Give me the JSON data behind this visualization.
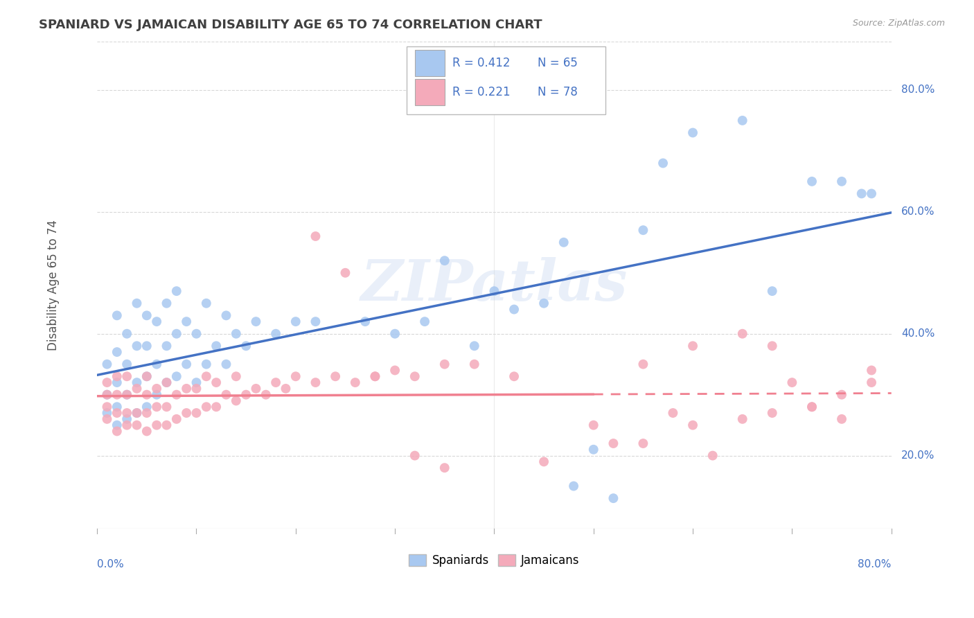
{
  "title": "SPANIARD VS JAMAICAN DISABILITY AGE 65 TO 74 CORRELATION CHART",
  "source_text": "Source: ZipAtlas.com",
  "ylabel": "Disability Age 65 to 74",
  "xlim": [
    0.0,
    0.8
  ],
  "ylim": [
    0.08,
    0.88
  ],
  "watermark": "ZIPatlas",
  "legend_r_spaniard": "0.412",
  "legend_n_spaniard": "65",
  "legend_r_jamaican": "0.221",
  "legend_n_jamaican": "78",
  "spaniard_color": "#A8C8F0",
  "jamaican_color": "#F4AABA",
  "spaniard_line_color": "#4472C4",
  "jamaican_line_color": "#F08090",
  "grid_color": "#D8D8D8",
  "title_color": "#404040",
  "legend_text_color": "#4472C4",
  "right_tick_color": "#4472C4",
  "spaniard_x": [
    0.01,
    0.01,
    0.01,
    0.02,
    0.02,
    0.02,
    0.02,
    0.02,
    0.03,
    0.03,
    0.03,
    0.03,
    0.04,
    0.04,
    0.04,
    0.04,
    0.05,
    0.05,
    0.05,
    0.05,
    0.06,
    0.06,
    0.06,
    0.07,
    0.07,
    0.07,
    0.08,
    0.08,
    0.08,
    0.09,
    0.09,
    0.1,
    0.1,
    0.11,
    0.11,
    0.12,
    0.13,
    0.13,
    0.14,
    0.15,
    0.16,
    0.18,
    0.2,
    0.22,
    0.27,
    0.3,
    0.33,
    0.4,
    0.45,
    0.47,
    0.5,
    0.55,
    0.57,
    0.6,
    0.65,
    0.68,
    0.72,
    0.75,
    0.77,
    0.78,
    0.35,
    0.38,
    0.42,
    0.48,
    0.52
  ],
  "spaniard_y": [
    0.27,
    0.3,
    0.35,
    0.25,
    0.28,
    0.32,
    0.37,
    0.43,
    0.26,
    0.3,
    0.35,
    0.4,
    0.27,
    0.32,
    0.38,
    0.45,
    0.28,
    0.33,
    0.38,
    0.43,
    0.3,
    0.35,
    0.42,
    0.32,
    0.38,
    0.45,
    0.33,
    0.4,
    0.47,
    0.35,
    0.42,
    0.32,
    0.4,
    0.35,
    0.45,
    0.38,
    0.35,
    0.43,
    0.4,
    0.38,
    0.42,
    0.4,
    0.42,
    0.42,
    0.42,
    0.4,
    0.42,
    0.47,
    0.45,
    0.55,
    0.21,
    0.57,
    0.68,
    0.73,
    0.75,
    0.47,
    0.65,
    0.65,
    0.63,
    0.63,
    0.52,
    0.38,
    0.44,
    0.15,
    0.13
  ],
  "jamaican_x": [
    0.01,
    0.01,
    0.01,
    0.01,
    0.02,
    0.02,
    0.02,
    0.02,
    0.03,
    0.03,
    0.03,
    0.03,
    0.04,
    0.04,
    0.04,
    0.05,
    0.05,
    0.05,
    0.05,
    0.06,
    0.06,
    0.06,
    0.07,
    0.07,
    0.07,
    0.08,
    0.08,
    0.09,
    0.09,
    0.1,
    0.1,
    0.11,
    0.11,
    0.12,
    0.12,
    0.13,
    0.14,
    0.14,
    0.15,
    0.16,
    0.17,
    0.18,
    0.19,
    0.2,
    0.22,
    0.24,
    0.26,
    0.28,
    0.3,
    0.32,
    0.35,
    0.38,
    0.22,
    0.25,
    0.28,
    0.32,
    0.35,
    0.45,
    0.55,
    0.58,
    0.6,
    0.62,
    0.65,
    0.68,
    0.72,
    0.75,
    0.78,
    0.42,
    0.5,
    0.52,
    0.55,
    0.6,
    0.65,
    0.68,
    0.7,
    0.72,
    0.75,
    0.78
  ],
  "jamaican_y": [
    0.26,
    0.28,
    0.3,
    0.32,
    0.24,
    0.27,
    0.3,
    0.33,
    0.25,
    0.27,
    0.3,
    0.33,
    0.25,
    0.27,
    0.31,
    0.24,
    0.27,
    0.3,
    0.33,
    0.25,
    0.28,
    0.31,
    0.25,
    0.28,
    0.32,
    0.26,
    0.3,
    0.27,
    0.31,
    0.27,
    0.31,
    0.28,
    0.33,
    0.28,
    0.32,
    0.3,
    0.29,
    0.33,
    0.3,
    0.31,
    0.3,
    0.32,
    0.31,
    0.33,
    0.32,
    0.33,
    0.32,
    0.33,
    0.34,
    0.33,
    0.35,
    0.35,
    0.56,
    0.5,
    0.33,
    0.2,
    0.18,
    0.19,
    0.22,
    0.27,
    0.25,
    0.2,
    0.26,
    0.27,
    0.28,
    0.26,
    0.34,
    0.33,
    0.25,
    0.22,
    0.35,
    0.38,
    0.4,
    0.38,
    0.32,
    0.28,
    0.3,
    0.32
  ]
}
